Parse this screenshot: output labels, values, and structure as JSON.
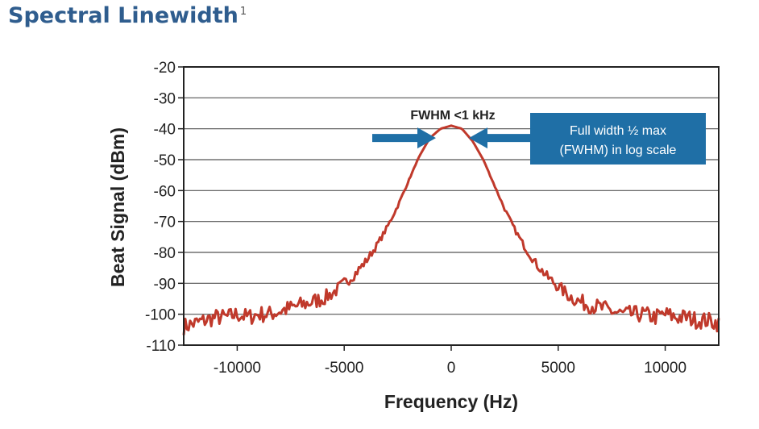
{
  "header": {
    "title": "Spectral Linewidth",
    "footnote": "1"
  },
  "colors": {
    "title": "#2f5d8e",
    "trace": "#c0392b",
    "annotation_blue": "#1f6fa6",
    "gridline": "#555555"
  },
  "chart_data": {
    "type": "line",
    "title": "Spectral Linewidth",
    "xlabel": "Frequency (Hz)",
    "ylabel": "Beat Signal (dBm)",
    "xlim": [
      -12500,
      12500
    ],
    "ylim": [
      -110,
      -20
    ],
    "x_ticks": [
      -10000,
      -5000,
      0,
      5000,
      10000
    ],
    "x_tick_labels": [
      "-10000",
      "-5000",
      "0",
      "5000",
      "10000"
    ],
    "y_ticks": [
      -20,
      -30,
      -40,
      -50,
      -60,
      -70,
      -80,
      -90,
      -100,
      -110
    ],
    "y_tick_labels": [
      "-20",
      "-30",
      "-40",
      "-50",
      "-60",
      "-70",
      "-80",
      "-90",
      "-100",
      "-110"
    ],
    "grid": "horizontal",
    "series": [
      {
        "x": [
          -12500,
          -12000,
          -11500,
          -11000,
          -10500,
          -10000,
          -9500,
          -9000,
          -8500,
          -8000,
          -7500,
          -7000,
          -6500,
          -6000,
          -5500,
          -5000,
          -4500,
          -4000,
          -3500,
          -3000,
          -2500,
          -2000,
          -1500,
          -1000,
          -500,
          0,
          500,
          1000,
          1500,
          2000,
          2500,
          3000,
          3500,
          4000,
          4500,
          5000,
          5500,
          6000,
          6500,
          7000,
          7500,
          8000,
          8500,
          9000,
          9500,
          10000,
          10500,
          11000,
          11500,
          12000,
          12500
        ],
        "values": [
          -104,
          -103,
          -102,
          -101,
          -101,
          -100,
          -101,
          -100,
          -100,
          -99,
          -98,
          -97,
          -96,
          -95,
          -93,
          -90,
          -87,
          -83,
          -78,
          -72,
          -65,
          -57,
          -49,
          -43,
          -40,
          -39,
          -40,
          -44,
          -50,
          -58,
          -66,
          -73,
          -79,
          -84,
          -88,
          -91,
          -94,
          -96,
          -97,
          -98,
          -99,
          -100,
          -100,
          -100,
          -101,
          -100,
          -101,
          -101,
          -102,
          -102,
          -103
        ]
      }
    ],
    "annotations": {
      "fwhm_label": "FWHM <1 kHz",
      "box_line1": "Full width ½ max",
      "box_line2": "(FWHM) in log scale"
    }
  }
}
